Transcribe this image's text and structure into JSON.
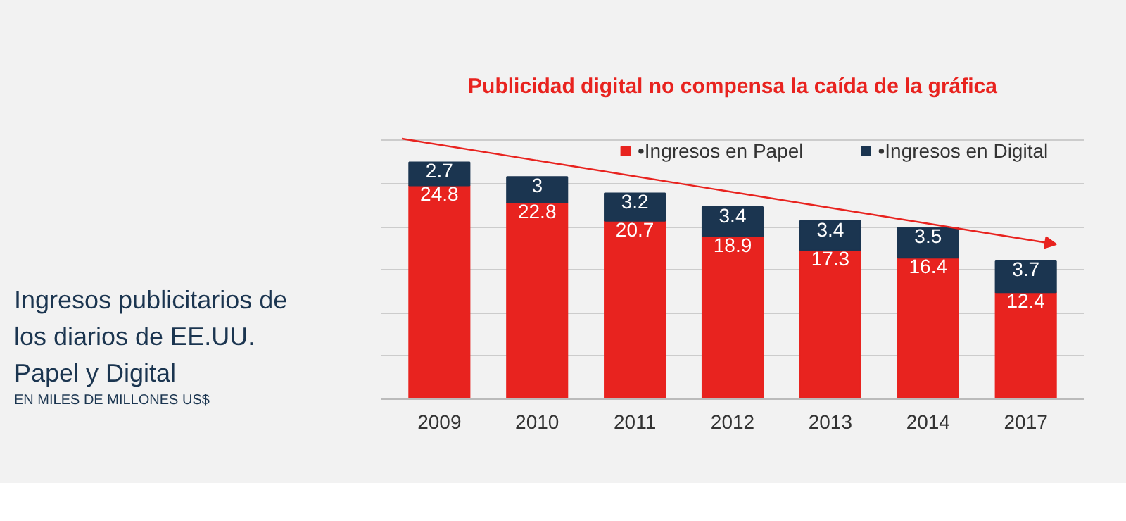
{
  "chart_data": {
    "type": "bar",
    "stacked": true,
    "title": "Publicidad digital no compensa la caída de la gráfica",
    "subtitle": "Ingresos publicitarios de los diarios de EE.UU. Papel y Digital",
    "annotations": [
      "EN MILES DE MILLONES US$"
    ],
    "categories": [
      "2009",
      "2010",
      "2011",
      "2012",
      "2013",
      "2014",
      "2017"
    ],
    "series": [
      {
        "name": "•Ingresos en Papel",
        "color": "#e8231f",
        "values": [
          24.8,
          22.8,
          20.7,
          18.9,
          17.3,
          16.4,
          12.4
        ]
      },
      {
        "name": "•Ingresos en Digital",
        "color": "#1b3550",
        "values": [
          2.7,
          3,
          3.2,
          3.4,
          3.4,
          3.5,
          3.7
        ]
      }
    ],
    "yticks": [
      {
        "value": 0,
        "label": null
      },
      {
        "value": 5,
        "label": null
      },
      {
        "value": 10,
        "label": null
      },
      {
        "value": 15,
        "label": null
      },
      {
        "value": 20,
        "label": null
      },
      {
        "value": 25,
        "label": null
      },
      {
        "value": 30,
        "label": null
      }
    ],
    "grid": "y",
    "legend": "top right",
    "tick_labels": "x",
    "data_labels": true
  }
}
